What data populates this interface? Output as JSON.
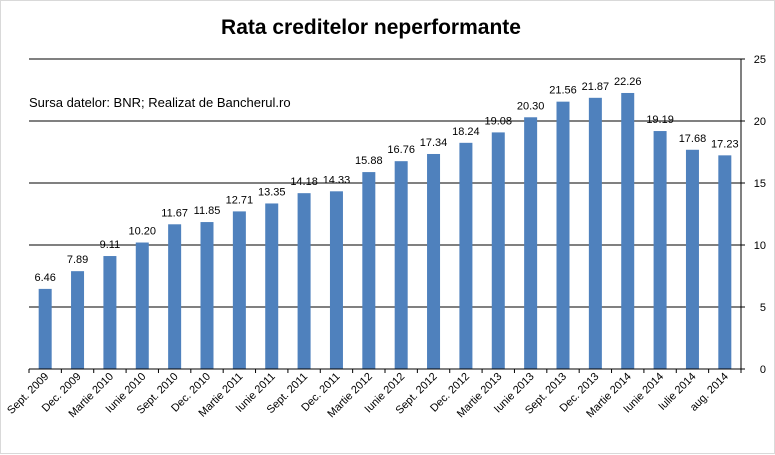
{
  "chart_data": {
    "type": "bar",
    "title": "Rata creditelor neperformante",
    "source_note": "Sursa datelor: BNR; Realizat de Bancherul.ro",
    "categories": [
      "Sept. 2009",
      "Dec. 2009",
      "Martie 2010",
      "Iunie 2010",
      "Sept. 2010",
      "Dec. 2010",
      "Martie 2011",
      "Iunie 2011",
      "Sept. 2011",
      "Dec. 2011",
      "Martie 2012",
      "Iunie 2012",
      "Sept. 2012",
      "Dec. 2012",
      "Martie 2013",
      "Iunie 2013",
      "Sept. 2013",
      "Dec. 2013",
      "Martie 2014",
      "Iunie 2014",
      "Iulie 2014",
      "aug. 2014"
    ],
    "values": [
      6.46,
      7.89,
      9.11,
      10.2,
      11.67,
      11.85,
      12.71,
      13.35,
      14.18,
      14.33,
      15.88,
      16.76,
      17.34,
      18.24,
      19.08,
      20.3,
      21.56,
      21.87,
      22.26,
      19.19,
      17.68,
      17.23
    ],
    "value_labels": [
      "6.46",
      "7.89",
      "9.11",
      "10.20",
      "11.67",
      "11.85",
      "12.71",
      "13.35",
      "14.18",
      "14.33",
      "15.88",
      "16.76",
      "17.34",
      "18.24",
      "19.08",
      "20.30",
      "21.56",
      "21.87",
      "22.26",
      "19.19",
      "17.68",
      "17.23"
    ],
    "y_ticks": [
      "0",
      "5",
      "10",
      "15",
      "20",
      "25"
    ],
    "ylim": [
      0,
      25
    ],
    "y_axis_side": "right",
    "grid": true,
    "legend": "none",
    "bar_color": "#4f81bd"
  }
}
